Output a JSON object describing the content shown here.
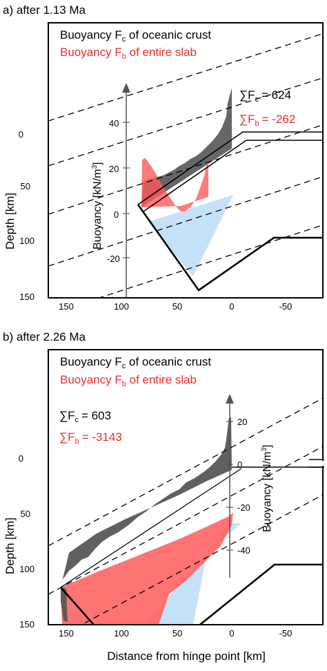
{
  "chart_data": [
    {
      "type": "area",
      "panel_label": "a) after 1.13 Ma",
      "legend": {
        "crust": "Buoyancy F",
        "crust_sub": "c",
        "crust_tail": " of oceanic crust",
        "slab": "Buoyancy F",
        "slab_sub": "b",
        "slab_tail": " of entire slab"
      },
      "sums": {
        "fc_label": "∑F",
        "fc_sub": "c",
        "fc_value": "= 624",
        "fb_label": "∑F",
        "fb_sub": "b",
        "fb_value": "= -262"
      },
      "ylabel": "Depth [km]",
      "xlim": [
        160,
        -85
      ],
      "ylim": [
        150,
        -20
      ],
      "x_ticks": [
        "150",
        "100",
        "50",
        "0",
        "-50"
      ],
      "y_ticks": [
        "0",
        "50",
        "100",
        "150"
      ],
      "buoyancy_axis": {
        "label": "Buoyancy [kN/m",
        "label_sup": "3",
        "label_tail": "]",
        "ticks": [
          "40",
          "20",
          "0",
          "-20"
        ]
      },
      "series": [
        {
          "name": "crust",
          "values": [
            8,
            12,
            15,
            18,
            20,
            21,
            23,
            25,
            27,
            29,
            30,
            31,
            33,
            35,
            38,
            42,
            55
          ]
        },
        {
          "name": "slab",
          "values": [
            25,
            20,
            13,
            6,
            2,
            0,
            1,
            5,
            11,
            17,
            23
          ]
        }
      ]
    },
    {
      "type": "area",
      "panel_label": "b) after 2.26 Ma",
      "legend": {
        "crust": "Buoyancy F",
        "crust_sub": "c",
        "crust_tail": " of oceanic crust",
        "slab": "Buoyancy F",
        "slab_sub": "b",
        "slab_tail": " of entire slab"
      },
      "sums": {
        "fc_label": "∑F",
        "fc_sub": "c",
        "fc_value": "= 603",
        "fb_label": "∑F",
        "fb_sub": "b",
        "fb_value": "= -3143"
      },
      "ylabel": "Depth [km]",
      "xlabel": "Distance from hinge point [km]",
      "xlim": [
        160,
        -85
      ],
      "ylim": [
        150,
        -40
      ],
      "x_ticks": [
        "150",
        "100",
        "50",
        "0",
        "-50"
      ],
      "y_ticks": [
        "0",
        "50",
        "100",
        "150"
      ],
      "buoyancy_axis": {
        "label": "Buoyancy [kN/m",
        "label_sup": "3",
        "label_tail": "]",
        "ticks": [
          "20",
          "0",
          "-20",
          "-40"
        ]
      },
      "series": [
        {
          "name": "crust",
          "values": [
            6,
            8,
            9,
            10,
            11,
            12,
            12,
            13,
            14,
            15,
            16,
            18,
            20,
            22
          ]
        },
        {
          "name": "slab",
          "values": [
            -30,
            -40,
            -50,
            -55,
            -60,
            -50,
            -30,
            -10
          ]
        }
      ]
    }
  ]
}
